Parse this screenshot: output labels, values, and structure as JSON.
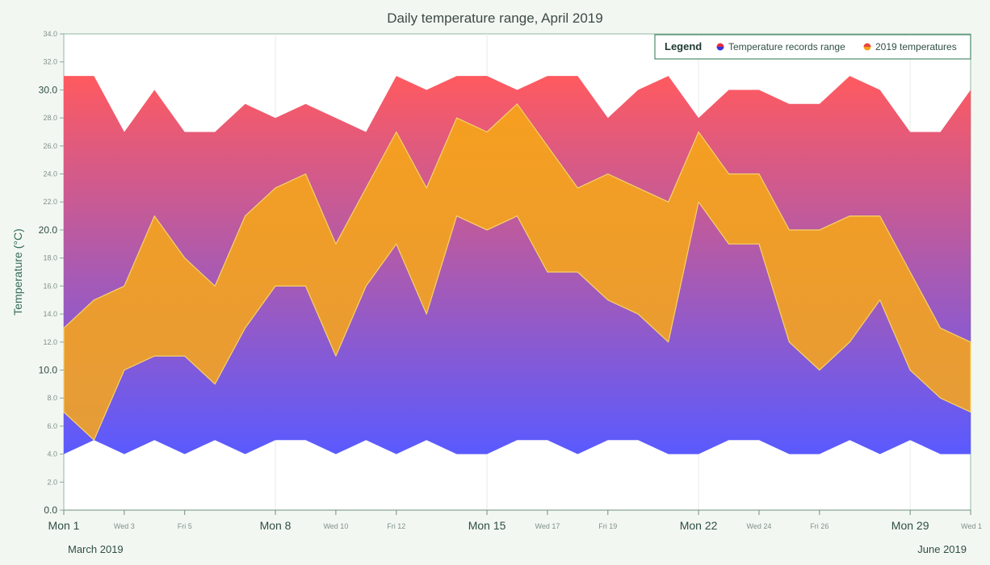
{
  "chart_data": {
    "type": "area",
    "title": "Daily temperature range, April 2019",
    "ylabel": "Temperature (°C)",
    "xlabel": "",
    "ylim": [
      0,
      34
    ],
    "yticks": [
      "0.0",
      "2.0",
      "4.0",
      "6.0",
      "8.0",
      "10.0",
      "12.0",
      "14.0",
      "16.0",
      "18.0",
      "20.0",
      "22.0",
      "24.0",
      "26.0",
      "28.0",
      "30.0",
      "32.0",
      "34.0"
    ],
    "ytick_major_every": 5,
    "grid": "vertical-week-lines",
    "x_labels": [
      {
        "day": 0,
        "text": "Mon 1",
        "major": true
      },
      {
        "day": 2,
        "text": "Wed 3",
        "major": false
      },
      {
        "day": 4,
        "text": "Fri 5",
        "major": false
      },
      {
        "day": 7,
        "text": "Mon 8",
        "major": true
      },
      {
        "day": 9,
        "text": "Wed 10",
        "major": false
      },
      {
        "day": 11,
        "text": "Fri 12",
        "major": false
      },
      {
        "day": 14,
        "text": "Mon 15",
        "major": true
      },
      {
        "day": 16,
        "text": "Wed 17",
        "major": false
      },
      {
        "day": 18,
        "text": "Fri 19",
        "major": false
      },
      {
        "day": 21,
        "text": "Mon 22",
        "major": true
      },
      {
        "day": 23,
        "text": "Wed 24",
        "major": false
      },
      {
        "day": 25,
        "text": "Fri 26",
        "major": false
      },
      {
        "day": 28,
        "text": "Mon 29",
        "major": true
      },
      {
        "day": 30,
        "text": "Wed 1",
        "major": false
      }
    ],
    "footer_left": "March 2019",
    "footer_right": "June 2019",
    "legend": {
      "title": "Legend",
      "placement": "top-right",
      "entries": [
        "Temperature records range",
        "2019 temperatures"
      ]
    },
    "series": [
      {
        "name": "Temperature records range",
        "colors": [
          "#ff5a5f",
          "#5a5aff"
        ],
        "low": [
          4,
          5,
          4,
          5,
          4,
          5,
          4,
          5,
          5,
          4,
          5,
          4,
          5,
          4,
          4,
          5,
          5,
          4,
          5,
          5,
          4,
          4,
          5,
          5,
          4,
          4,
          5,
          4,
          5,
          4,
          4
        ],
        "high": [
          31,
          31,
          27,
          30,
          27,
          27,
          29,
          28,
          29,
          28,
          27,
          31,
          30,
          31,
          31,
          30,
          31,
          31,
          28,
          30,
          31,
          28,
          30,
          30,
          29,
          29,
          31,
          30,
          27,
          27,
          30
        ]
      },
      {
        "name": "2019 temperatures",
        "colors": [
          "#f6a21b",
          "#ec9f2e"
        ],
        "low": [
          7,
          5,
          10,
          11,
          11,
          9,
          13,
          16,
          16,
          11,
          16,
          19,
          14,
          21,
          20,
          21,
          17,
          17,
          15,
          14,
          12,
          22,
          19,
          19,
          12,
          10,
          12,
          15,
          10,
          8,
          7
        ],
        "high": [
          13,
          15,
          16,
          21,
          18,
          16,
          21,
          23,
          24,
          19,
          23,
          27,
          23,
          28,
          27,
          29,
          26,
          23,
          24,
          23,
          22,
          27,
          24,
          24,
          20,
          20,
          21,
          21,
          17,
          13,
          12
        ]
      }
    ]
  }
}
